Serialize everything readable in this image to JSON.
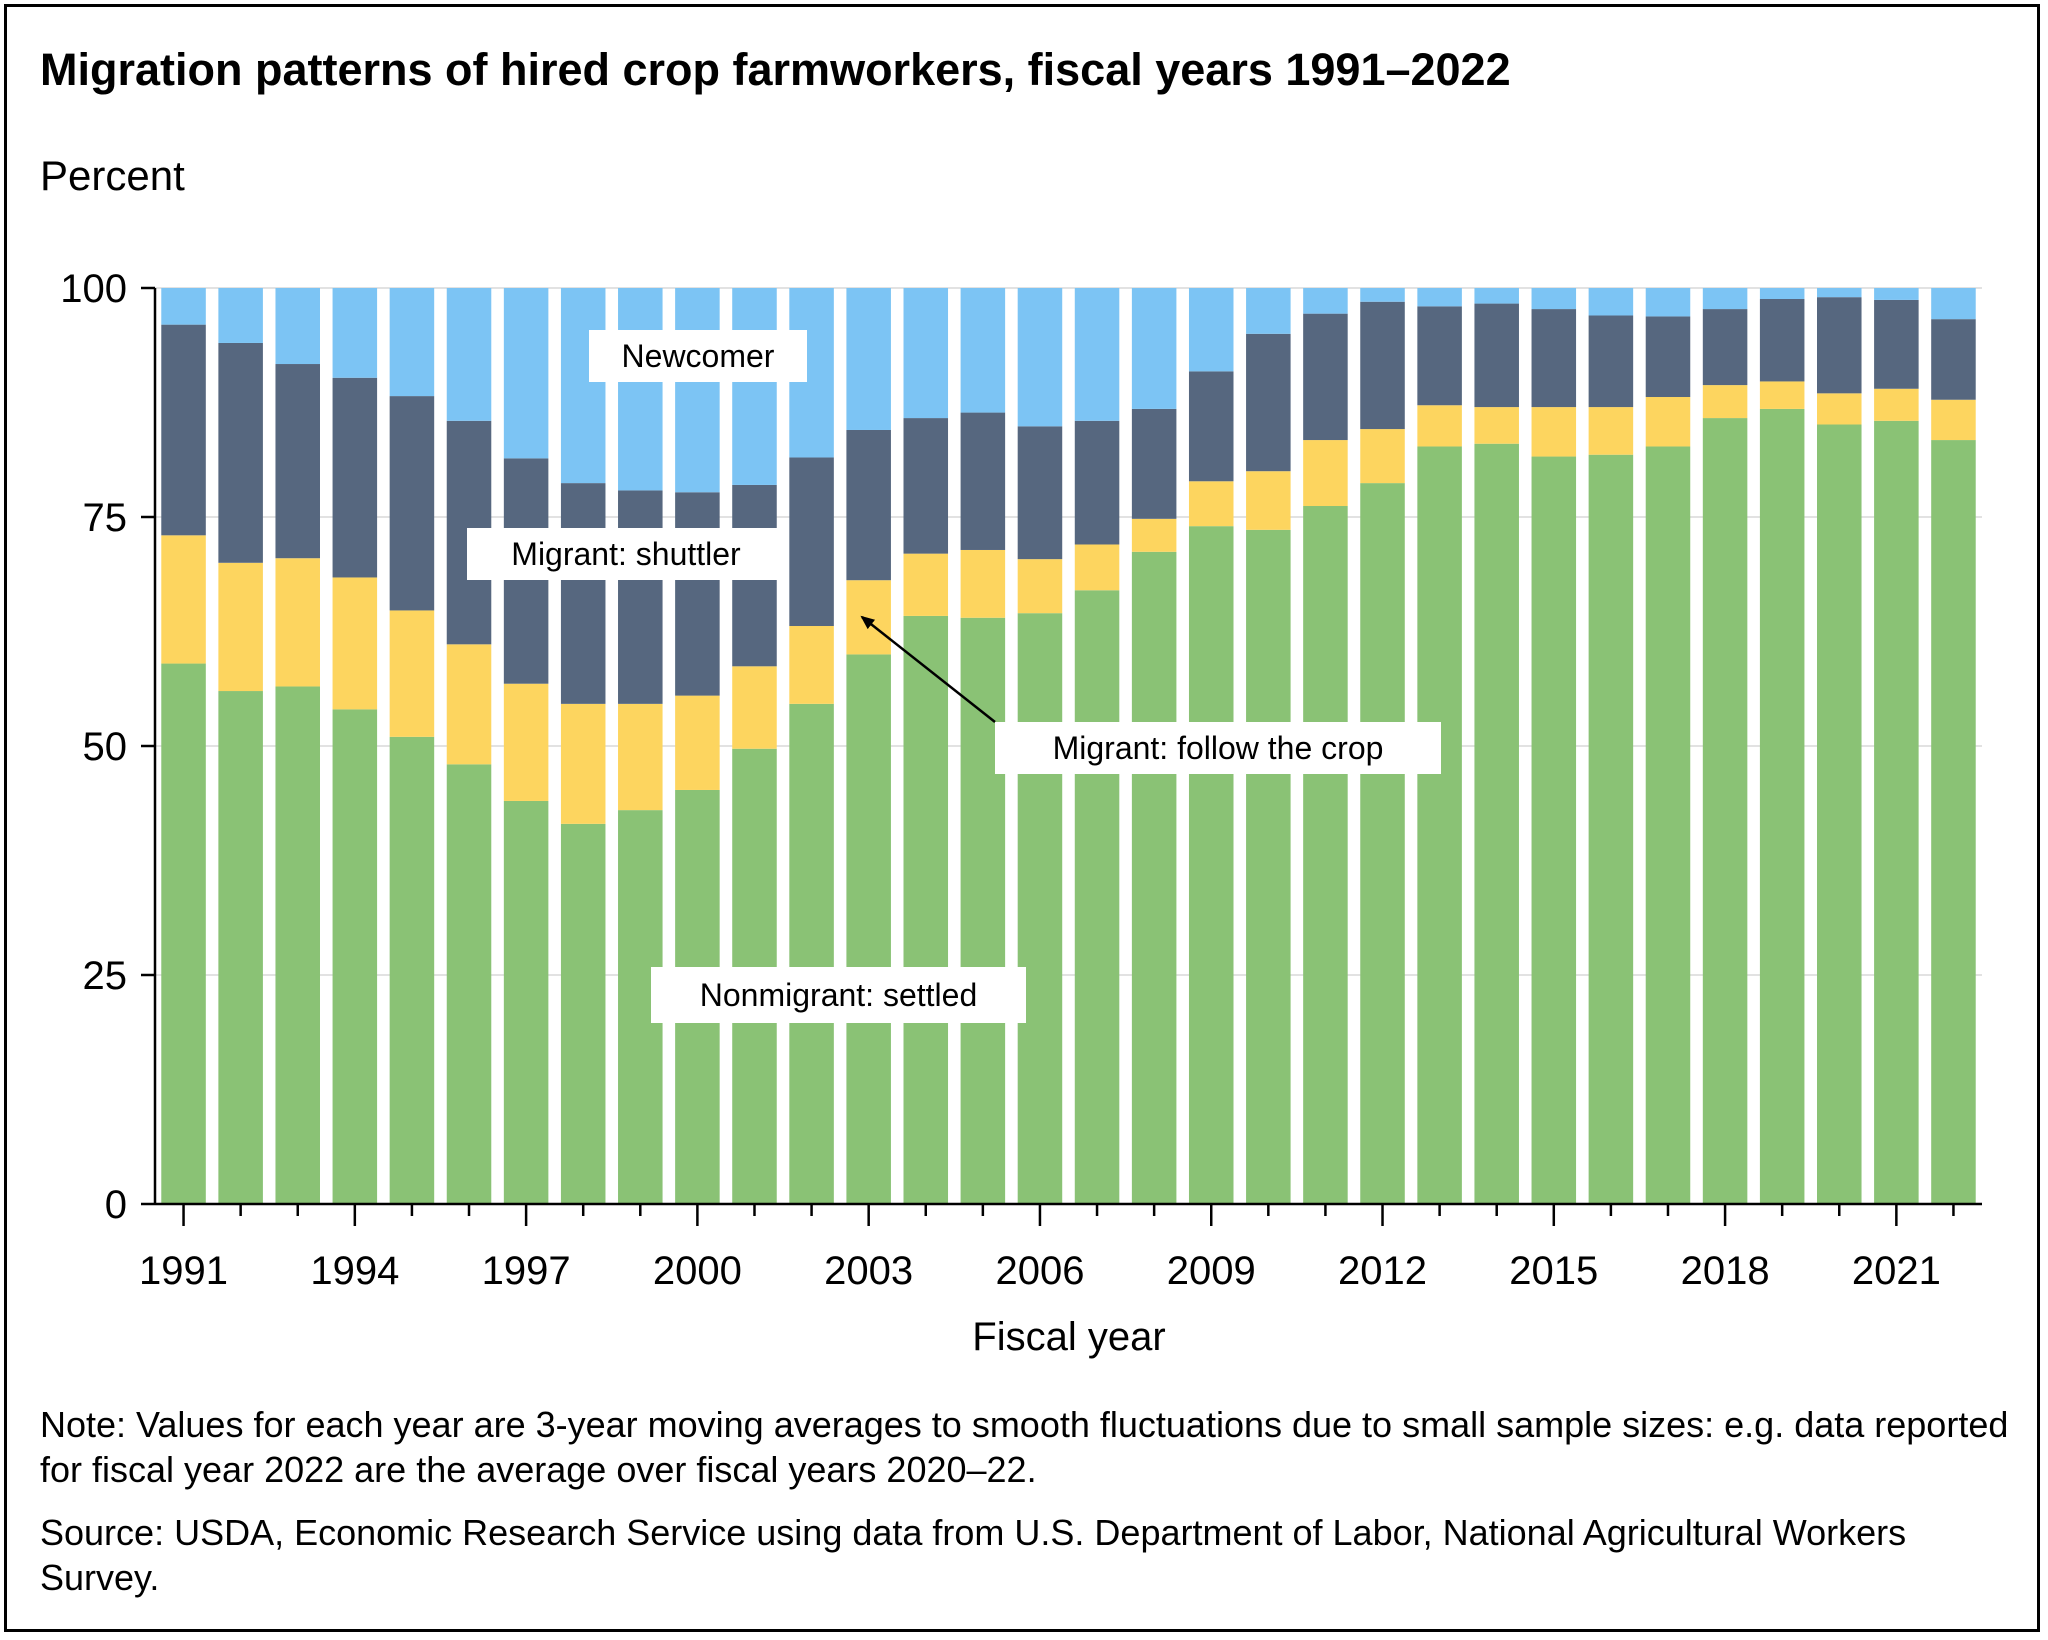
{
  "title": "Migration patterns of hired crop farmworkers, fiscal years 1991–2022",
  "note": "Note: Values for each year are 3-year moving averages to smooth fluctuations due to small sample sizes: e.g. data reported for fiscal year 2022 are the average over fiscal years 2020–22.",
  "source": "Source: USDA, Economic Research Service using data from U.S. Department of Labor, National Agricultural Workers Survey.",
  "chart_data": {
    "type": "bar",
    "stacked": true,
    "ylabel": "Percent",
    "xlabel": "Fiscal year",
    "ylim": [
      0,
      100
    ],
    "yticks": [
      0,
      25,
      50,
      75,
      100
    ],
    "xtick_labels": [
      "1991",
      "1994",
      "1997",
      "2000",
      "2003",
      "2006",
      "2009",
      "2012",
      "2015",
      "2018",
      "2021"
    ],
    "grid": "horizontal",
    "categories": [
      "1991",
      "1992",
      "1993",
      "1994",
      "1995",
      "1996",
      "1997",
      "1998",
      "1999",
      "2000",
      "2001",
      "2002",
      "2003",
      "2004",
      "2005",
      "2006",
      "2007",
      "2008",
      "2009",
      "2010",
      "2011",
      "2012",
      "2013",
      "2014",
      "2015",
      "2016",
      "2017",
      "2018",
      "2019",
      "2020",
      "2021",
      "2022"
    ],
    "series": [
      {
        "name": "Nonmigrant: settled",
        "color": "#8ac275",
        "values": [
          59,
          56,
          56.5,
          54,
          51,
          48,
          44,
          41.5,
          43,
          45.2,
          49.7,
          54.6,
          60,
          64.2,
          64,
          64.5,
          67,
          71.2,
          74,
          73.6,
          76.2,
          78.7,
          82.7,
          83,
          81.6,
          81.8,
          82.7,
          85.8,
          86.8,
          85.1,
          85.5,
          83.4
        ]
      },
      {
        "name": "Migrant: follow the crop",
        "color": "#fdd55f",
        "values": [
          14,
          14,
          14,
          14.4,
          13.8,
          13.1,
          12.8,
          13.1,
          11.6,
          10.3,
          9,
          8.5,
          8.1,
          6.8,
          7.4,
          5.9,
          5,
          3.6,
          4.9,
          6.4,
          7.2,
          5.9,
          4.5,
          4,
          5.4,
          5.2,
          5.4,
          3.6,
          3,
          3.4,
          3.5,
          4.4
        ]
      },
      {
        "name": "Migrant: shuttler",
        "color": "#56677f",
        "values": [
          23,
          24,
          21.2,
          21.8,
          23.4,
          24.4,
          24.6,
          24.1,
          23.3,
          22.2,
          19.8,
          18.4,
          16.4,
          14.8,
          15,
          14.5,
          13.5,
          12,
          12,
          15,
          13.8,
          13.9,
          10.8,
          11.3,
          10.7,
          10,
          8.8,
          8.3,
          9,
          10.5,
          9.7,
          8.8
        ]
      },
      {
        "name": "Newcomer",
        "color": "#7cc4f4",
        "values": [
          4,
          6,
          8.3,
          9.8,
          11.8,
          14.5,
          18.6,
          21.3,
          22.1,
          22.3,
          21.5,
          18.5,
          15.5,
          14.2,
          13.6,
          15.1,
          14.5,
          13.2,
          9.1,
          5,
          2.8,
          1.5,
          2,
          1.7,
          2.3,
          3,
          3.1,
          2.3,
          1.2,
          1,
          1.3,
          3.4
        ]
      }
    ],
    "annotations": [
      {
        "text": "Newcomer"
      },
      {
        "text": "Migrant: shuttler"
      },
      {
        "text": "Migrant: follow the crop"
      },
      {
        "text": "Nonmigrant: settled"
      }
    ]
  }
}
